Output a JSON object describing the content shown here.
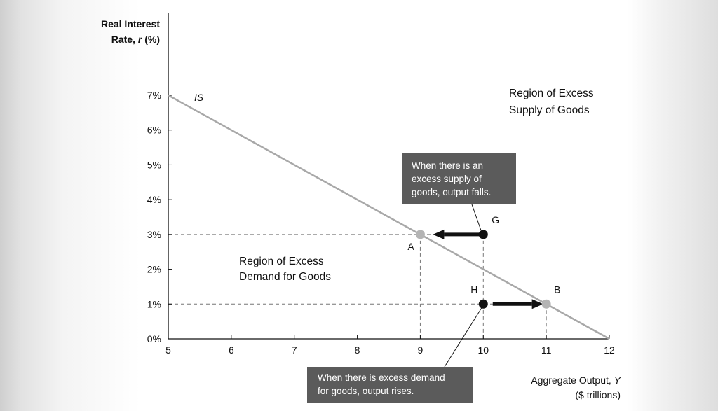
{
  "chart_data": {
    "type": "line",
    "xlim": [
      5,
      12
    ],
    "ylim": [
      0,
      7
    ],
    "x_ticks": [
      "5",
      "6",
      "7",
      "8",
      "9",
      "10",
      "11",
      "12"
    ],
    "y_ticks": [
      "0%",
      "1%",
      "2%",
      "3%",
      "4%",
      "5%",
      "6%",
      "7%"
    ],
    "ylabel_line1": "Real Interest",
    "ylabel_line2_prefix": "Rate, ",
    "ylabel_var": "r",
    "ylabel_unit": " (%)",
    "xlabel_line1_prefix": "Aggregate Output, ",
    "xlabel_var": "Y",
    "xlabel_line2": "($ trillions)",
    "series": [
      {
        "name": "IS",
        "x": [
          5,
          12
        ],
        "y": [
          7,
          0
        ]
      }
    ],
    "points": [
      {
        "label": "A",
        "x": 9,
        "y": 3,
        "color": "#b4b4b4"
      },
      {
        "label": "B",
        "x": 11,
        "y": 1,
        "color": "#b4b4b4"
      },
      {
        "label": "G",
        "x": 10,
        "y": 3,
        "color": "#111111"
      },
      {
        "label": "H",
        "x": 10,
        "y": 1,
        "color": "#111111"
      }
    ],
    "arrows": [
      {
        "from": [
          9.95,
          3
        ],
        "to": [
          9.2,
          3
        ]
      },
      {
        "from": [
          10.15,
          1
        ],
        "to": [
          10.95,
          1
        ]
      }
    ],
    "regions": {
      "supply_line1": "Region of Excess",
      "supply_line2": "Supply of Goods",
      "demand_line1": "Region of Excess",
      "demand_line2": "Demand for Goods"
    },
    "notes": {
      "supply": [
        "When there is an",
        "excess supply of",
        "goods, output falls."
      ],
      "demand": [
        "When there is excess demand",
        "for goods, output rises."
      ]
    },
    "colors": {
      "is_curve": "#a8a8a8",
      "note_box": "#5b5b5b",
      "guides": "#777777"
    }
  }
}
